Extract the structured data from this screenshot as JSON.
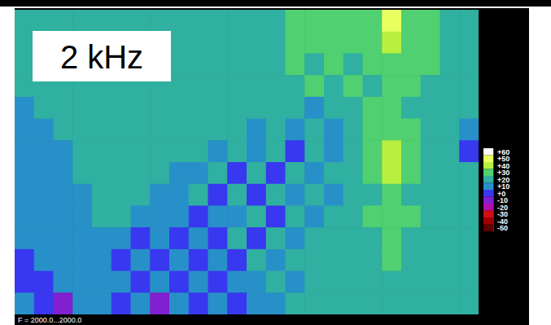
{
  "chart_data": {
    "type": "heatmap",
    "title": "2 kHz",
    "annotations": [
      "F = 2000.0...2000.0"
    ],
    "tick_labels": false,
    "z": [
      [
        18,
        20,
        20,
        20,
        18,
        18,
        18,
        18,
        18,
        18,
        18,
        18,
        18,
        22,
        26,
        28,
        28,
        26,
        30,
        50,
        30,
        26,
        24,
        22
      ],
      [
        18,
        20,
        20,
        18,
        18,
        18,
        18,
        18,
        18,
        18,
        18,
        18,
        20,
        24,
        28,
        28,
        26,
        28,
        30,
        40,
        30,
        26,
        24,
        22
      ],
      [
        16,
        18,
        20,
        18,
        18,
        18,
        18,
        18,
        18,
        18,
        18,
        18,
        20,
        22,
        26,
        24,
        26,
        22,
        28,
        32,
        28,
        26,
        22,
        22
      ],
      [
        16,
        18,
        18,
        18,
        18,
        18,
        18,
        18,
        18,
        18,
        18,
        18,
        18,
        20,
        22,
        26,
        22,
        26,
        24,
        30,
        26,
        22,
        24,
        20
      ],
      [
        14,
        16,
        18,
        18,
        18,
        18,
        18,
        18,
        18,
        18,
        18,
        18,
        18,
        16,
        20,
        10,
        24,
        20,
        26,
        30,
        24,
        22,
        20,
        20
      ],
      [
        12,
        14,
        16,
        18,
        18,
        18,
        18,
        18,
        18,
        18,
        18,
        16,
        12,
        20,
        8,
        20,
        12,
        24,
        28,
        32,
        26,
        22,
        20,
        6
      ],
      [
        12,
        12,
        14,
        16,
        18,
        18,
        18,
        18,
        18,
        16,
        12,
        18,
        6,
        18,
        4,
        20,
        10,
        22,
        26,
        42,
        26,
        20,
        18,
        4
      ],
      [
        10,
        12,
        14,
        16,
        18,
        18,
        18,
        18,
        14,
        8,
        16,
        4,
        18,
        2,
        18,
        8,
        20,
        22,
        28,
        38,
        26,
        22,
        20,
        18
      ],
      [
        10,
        10,
        12,
        14,
        16,
        18,
        18,
        10,
        8,
        16,
        2,
        16,
        4,
        18,
        6,
        20,
        12,
        22,
        24,
        30,
        24,
        22,
        20,
        18
      ],
      [
        8,
        10,
        12,
        14,
        16,
        16,
        12,
        6,
        14,
        2,
        14,
        6,
        16,
        4,
        18,
        10,
        20,
        22,
        26,
        30,
        26,
        22,
        20,
        18
      ],
      [
        6,
        8,
        10,
        12,
        14,
        12,
        4,
        14,
        2,
        14,
        4,
        16,
        2,
        16,
        8,
        20,
        16,
        22,
        24,
        28,
        24,
        20,
        18,
        18
      ],
      [
        4,
        6,
        8,
        10,
        12,
        4,
        12,
        0,
        12,
        4,
        14,
        2,
        16,
        8,
        18,
        18,
        20,
        22,
        24,
        26,
        24,
        20,
        18,
        18
      ],
      [
        2,
        -4,
        6,
        8,
        10,
        12,
        2,
        12,
        -4,
        12,
        0,
        14,
        6,
        16,
        12,
        18,
        18,
        20,
        22,
        24,
        22,
        20,
        18,
        18
      ],
      [
        8,
        2,
        -6,
        6,
        10,
        2,
        10,
        -6,
        10,
        0,
        12,
        4,
        14,
        10,
        16,
        16,
        18,
        20,
        20,
        22,
        20,
        18,
        18,
        18
      ]
    ],
    "colorbar": {
      "range": [
        -55,
        65
      ],
      "ticks": [
        {
          "value": 60,
          "label": "+60"
        },
        {
          "value": 50,
          "label": "+50"
        },
        {
          "value": 40,
          "label": "+40"
        },
        {
          "value": 30,
          "label": "+30"
        },
        {
          "value": 20,
          "label": "+20"
        },
        {
          "value": 10,
          "label": "+10"
        },
        {
          "value": 0,
          "label": "+0"
        },
        -10,
        -20,
        -30,
        -40,
        -50
      ],
      "colors": [
        "#ffffff",
        "#e8ff60",
        "#b8f040",
        "#50d070",
        "#30b0a0",
        "#2890c8",
        "#3838f0",
        "#8020d0",
        "#b010b0",
        "#d01010",
        "#a00000",
        "#600000"
      ]
    }
  }
}
